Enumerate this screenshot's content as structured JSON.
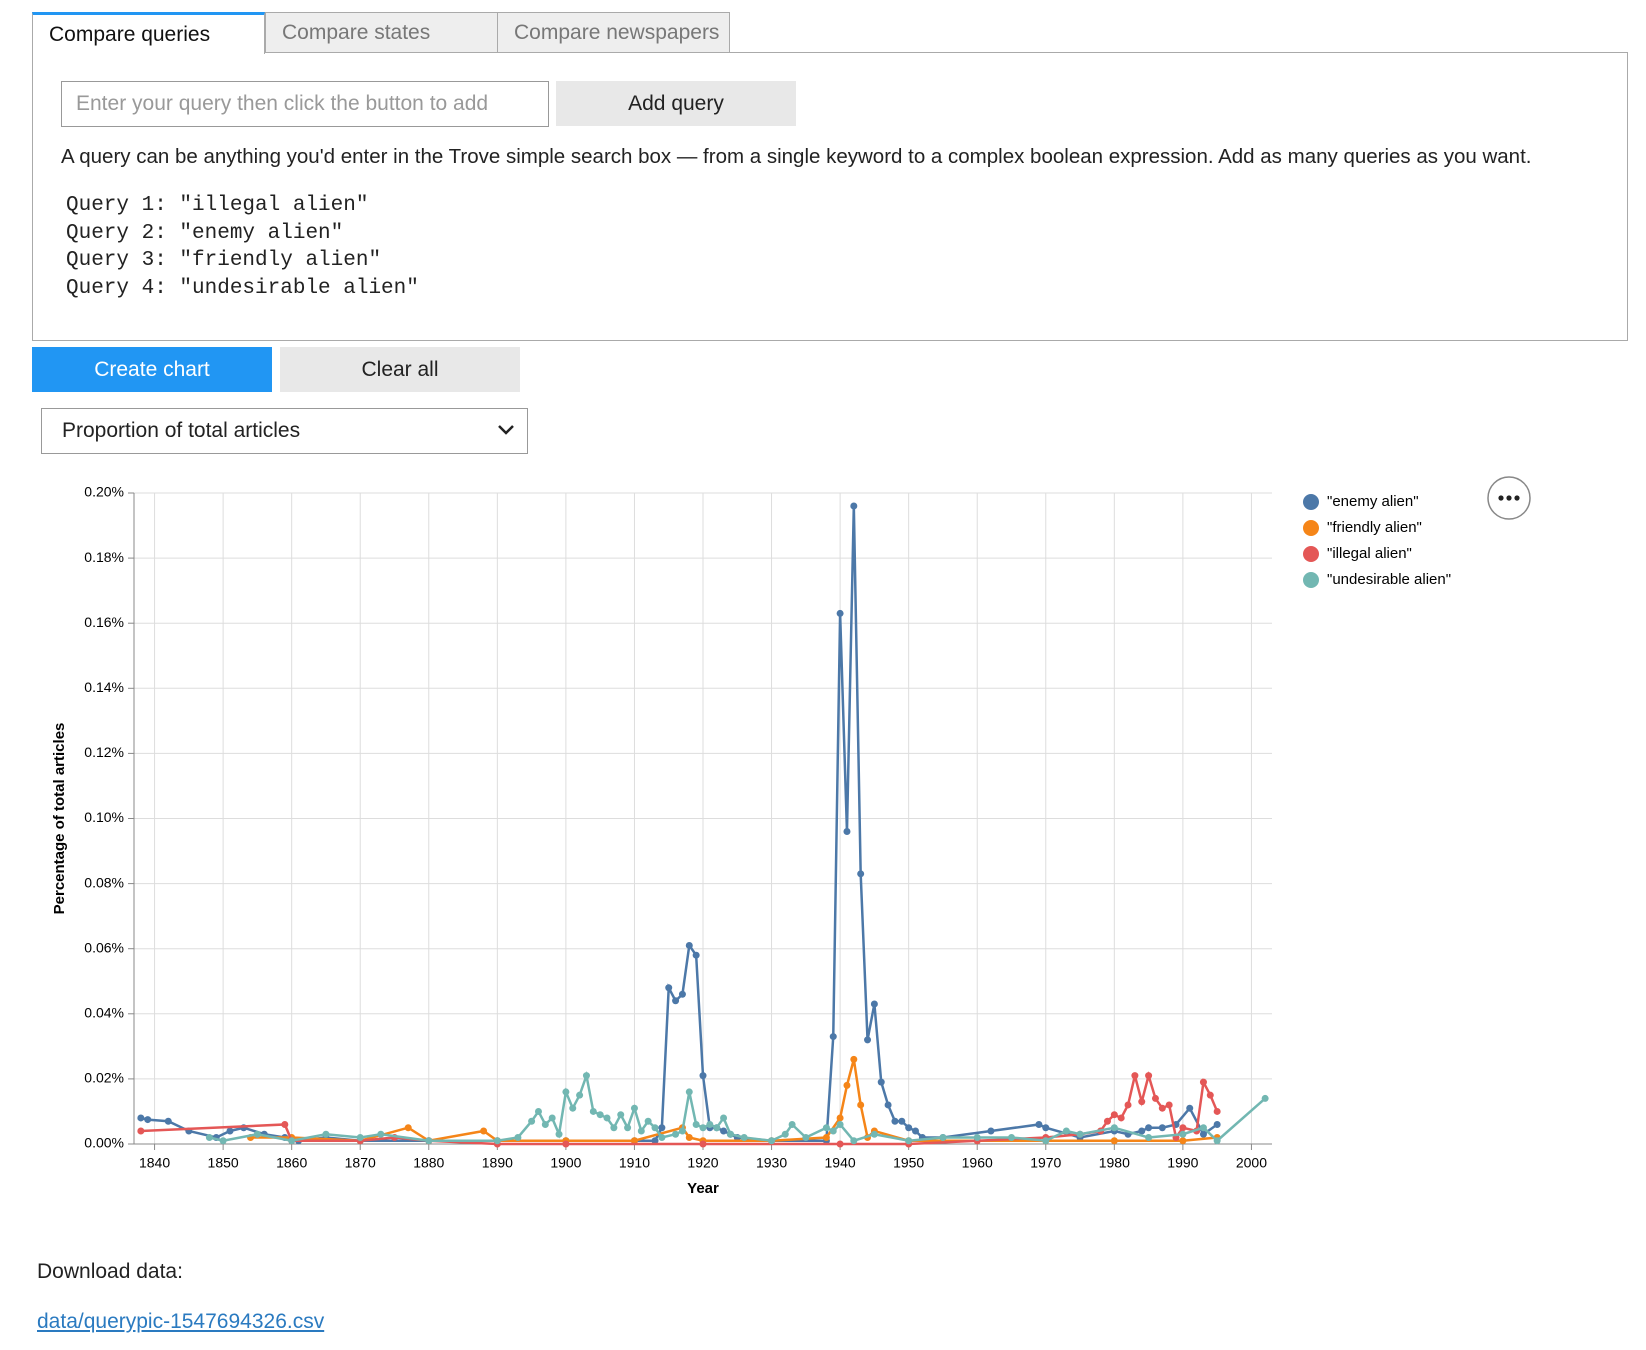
{
  "tabs": [
    "Compare queries",
    "Compare states",
    "Compare newspapers"
  ],
  "query_input": {
    "placeholder": "Enter your query then click the button to add",
    "button": "Add query"
  },
  "description": "A query can be anything you'd enter in the Trove simple search box — from a single keyword to a complex boolean expression. Add as many queries as you want.",
  "queries": [
    "Query 1: \"illegal alien\"",
    "Query 2: \"enemy alien\"",
    "Query 3: \"friendly alien\"",
    "Query 4: \"undesirable alien\""
  ],
  "buttons": {
    "create": "Create chart",
    "clear": "Clear all"
  },
  "select": "Proportion of total articles",
  "download": {
    "label": "Download data:",
    "link": "data/querypic-1547694326.csv"
  },
  "chart_data": {
    "type": "line",
    "x_label": "Year",
    "y_label": "Percentage of total articles",
    "xlim": [
      1837,
      2003
    ],
    "ylim": [
      0,
      0.2
    ],
    "xticks": [
      1840,
      1850,
      1860,
      1870,
      1880,
      1890,
      1900,
      1910,
      1920,
      1930,
      1940,
      1950,
      1960,
      1970,
      1980,
      1990,
      2000
    ],
    "yticks": [
      {
        "value": 0,
        "label": "0.00%"
      },
      {
        "value": 0.02,
        "label": "0.02%"
      },
      {
        "value": 0.04,
        "label": "0.04%"
      },
      {
        "value": 0.06,
        "label": "0.06%"
      },
      {
        "value": 0.08,
        "label": "0.08%"
      },
      {
        "value": 0.1,
        "label": "0.10%"
      },
      {
        "value": 0.12,
        "label": "0.12%"
      },
      {
        "value": 0.14,
        "label": "0.14%"
      },
      {
        "value": 0.16,
        "label": "0.16%"
      },
      {
        "value": 0.18,
        "label": "0.18%"
      },
      {
        "value": 0.2,
        "label": "0.20%"
      }
    ],
    "grid": true,
    "legend": "right",
    "series": [
      {
        "name": "\"enemy alien\"",
        "color": "#4c78a8",
        "x": [
          1838,
          1839,
          1842,
          1845,
          1849,
          1851,
          1853,
          1856,
          1859,
          1861,
          1865,
          1870,
          1880,
          1890,
          1900,
          1910,
          1913,
          1914,
          1915,
          1916,
          1917,
          1918,
          1919,
          1920,
          1921,
          1922,
          1923,
          1924,
          1925,
          1930,
          1938,
          1939,
          1940,
          1941,
          1942,
          1943,
          1944,
          1945,
          1946,
          1947,
          1948,
          1949,
          1950,
          1951,
          1952,
          1955,
          1962,
          1969,
          1970,
          1975,
          1980,
          1982,
          1984,
          1985,
          1987,
          1989,
          1991,
          1993,
          1995
        ],
        "values": [
          0.008,
          0.0075,
          0.007,
          0.004,
          0.002,
          0.004,
          0.005,
          0.003,
          0.002,
          0.001,
          0.002,
          0.001,
          0.001,
          0.001,
          0.001,
          0.001,
          0.001,
          0.005,
          0.048,
          0.044,
          0.046,
          0.061,
          0.058,
          0.021,
          0.005,
          0.005,
          0.004,
          0.003,
          0.002,
          0.001,
          0.001,
          0.033,
          0.163,
          0.096,
          0.196,
          0.083,
          0.032,
          0.043,
          0.019,
          0.012,
          0.007,
          0.007,
          0.005,
          0.004,
          0.002,
          0.002,
          0.004,
          0.006,
          0.005,
          0.002,
          0.004,
          0.003,
          0.004,
          0.005,
          0.005,
          0.006,
          0.011,
          0.003,
          0.006
        ]
      },
      {
        "name": "\"friendly alien\"",
        "color": "#f58518",
        "x": [
          1854,
          1860,
          1870,
          1877,
          1880,
          1888,
          1890,
          1900,
          1910,
          1917,
          1918,
          1920,
          1930,
          1938,
          1940,
          1941,
          1942,
          1943,
          1944,
          1945,
          1950,
          1960,
          1970,
          1980,
          1990,
          1995
        ],
        "values": [
          0.002,
          0.002,
          0.001,
          0.005,
          0.001,
          0.004,
          0.001,
          0.001,
          0.001,
          0.005,
          0.002,
          0.001,
          0.001,
          0.002,
          0.008,
          0.018,
          0.026,
          0.012,
          0.002,
          0.004,
          0.001,
          0.001,
          0.001,
          0.001,
          0.001,
          0.002
        ]
      },
      {
        "name": "\"illegal alien\"",
        "color": "#e45756",
        "x": [
          1838,
          1859,
          1860,
          1870,
          1875,
          1880,
          1890,
          1900,
          1920,
          1940,
          1950,
          1960,
          1970,
          1975,
          1978,
          1979,
          1980,
          1981,
          1982,
          1983,
          1984,
          1985,
          1986,
          1987,
          1988,
          1989,
          1990,
          1992,
          1993,
          1994,
          1995
        ],
        "values": [
          0.004,
          0.006,
          0.001,
          0.001,
          0.002,
          0.001,
          0,
          0,
          0,
          0,
          0,
          0.001,
          0.002,
          0.003,
          0.004,
          0.007,
          0.009,
          0.008,
          0.012,
          0.021,
          0.013,
          0.021,
          0.014,
          0.011,
          0.012,
          0.002,
          0.005,
          0.004,
          0.019,
          0.015,
          0.01
        ]
      },
      {
        "name": "\"undesirable alien\"",
        "color": "#72b7b2",
        "x": [
          1848,
          1850,
          1855,
          1860,
          1865,
          1870,
          1873,
          1880,
          1890,
          1893,
          1895,
          1896,
          1897,
          1898,
          1899,
          1900,
          1901,
          1902,
          1903,
          1904,
          1905,
          1906,
          1907,
          1908,
          1909,
          1910,
          1911,
          1912,
          1913,
          1914,
          1916,
          1917,
          1918,
          1919,
          1920,
          1921,
          1922,
          1923,
          1924,
          1926,
          1930,
          1932,
          1933,
          1935,
          1938,
          1939,
          1940,
          1942,
          1945,
          1950,
          1955,
          1960,
          1965,
          1970,
          1973,
          1975,
          1980,
          1985,
          1990,
          1993,
          1995,
          2002
        ],
        "values": [
          0.002,
          0.001,
          0.003,
          0.001,
          0.003,
          0.002,
          0.003,
          0.001,
          0.001,
          0.002,
          0.007,
          0.01,
          0.006,
          0.008,
          0.003,
          0.016,
          0.011,
          0.015,
          0.021,
          0.01,
          0.009,
          0.008,
          0.005,
          0.009,
          0.005,
          0.011,
          0.004,
          0.007,
          0.005,
          0.002,
          0.003,
          0.004,
          0.016,
          0.006,
          0.005,
          0.006,
          0.005,
          0.008,
          0.003,
          0.002,
          0.001,
          0.003,
          0.006,
          0.002,
          0.005,
          0.004,
          0.006,
          0.001,
          0.003,
          0.001,
          0.002,
          0.002,
          0.002,
          0.001,
          0.004,
          0.003,
          0.005,
          0.002,
          0.003,
          0.005,
          0.001,
          0.014
        ]
      }
    ]
  }
}
